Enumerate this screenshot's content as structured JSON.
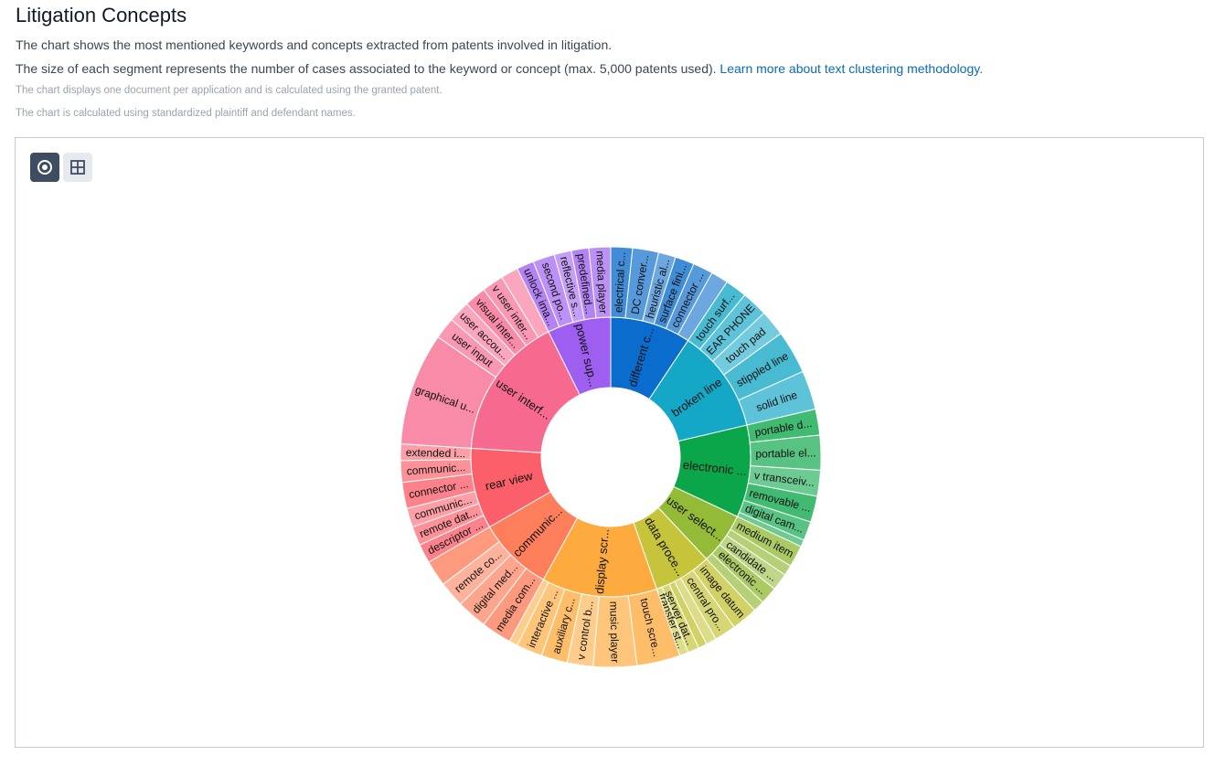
{
  "page": {
    "title": "Litigation Concepts",
    "description_1": "The chart shows the most mentioned keywords and concepts extracted from patents involved in litigation.",
    "description_2": "The size of each segment represents the number of cases associated to the keyword or concept (max. 5,000 patents used).",
    "methodology_link": "Learn more about text clustering methodology.",
    "note_1": "The chart displays one document per application and is calculated using the granted patent.",
    "note_2": "The chart is calculated using standardized plaintiff and defendant names."
  },
  "toolbar": {
    "sunburst_icon": "sunburst-icon",
    "treemap_icon": "treemap-icon"
  },
  "chart_data": {
    "type": "sunburst",
    "title": "",
    "clusters": [
      {
        "label": "different c...",
        "color": "#0a6ccc",
        "value": 14,
        "children": [
          {
            "label": "electrical c...",
            "value": 2.5
          },
          {
            "label": "DC conver...",
            "value": 3.0
          },
          {
            "label": "heuristic al...",
            "value": 2.0
          },
          {
            "label": "surface fini...",
            "value": 2.2
          },
          {
            "label": "connector ...",
            "value": 2.3
          },
          {
            "label": "",
            "value": 2.0
          }
        ]
      },
      {
        "label": "broken line",
        "color": "#15a8c6",
        "value": 18,
        "children": [
          {
            "label": "touch surf...",
            "value": 2.5
          },
          {
            "label": "EAR PHONE",
            "value": 3.0
          },
          {
            "label": "touch pad",
            "value": 3.0
          },
          {
            "label": "stippled line",
            "value": 5.0
          },
          {
            "label": "solid line",
            "value": 4.5
          }
        ]
      },
      {
        "label": "electronic ...",
        "color": "#0ba64a",
        "value": 16,
        "children": [
          {
            "label": "portable d...",
            "value": 3.0
          },
          {
            "label": "portable el...",
            "value": 4.0
          },
          {
            "label": "v transceiv...",
            "value": 3.0
          },
          {
            "label": "removable ...",
            "value": 3.0
          },
          {
            "label": "digital cam...",
            "value": 2.2
          },
          {
            "label": "",
            "value": 0.8
          }
        ]
      },
      {
        "label": "user select...",
        "color": "#94bb38",
        "value": 9,
        "children": [
          {
            "label": "medium item",
            "value": 2.5
          },
          {
            "label": "",
            "value": 1.2
          },
          {
            "label": "candidate ...",
            "value": 2.0
          },
          {
            "label": "electronic ...",
            "value": 2.0
          },
          {
            "label": "",
            "value": 1.3
          }
        ]
      },
      {
        "label": "data proce...",
        "color": "#c5c43a",
        "value": 10,
        "children": [
          {
            "label": "image datum",
            "value": 3.0
          },
          {
            "label": "central pro...",
            "value": 2.5
          },
          {
            "label": "",
            "value": 1.2
          },
          {
            "label": "",
            "value": 1.0
          },
          {
            "label": "server dat...",
            "value": 1.3
          },
          {
            "label": "transfer st...",
            "value": 1.0
          }
        ]
      },
      {
        "label": "display scr...",
        "color": "#fdab3f",
        "value": 20,
        "children": [
          {
            "label": "touch scre...",
            "value": 5.0
          },
          {
            "label": "music player",
            "value": 5.0
          },
          {
            "label": "v control b...",
            "value": 3.0
          },
          {
            "label": "auxiliary c...",
            "value": 3.0
          },
          {
            "label": "interactive ...",
            "value": 3.0
          },
          {
            "label": "",
            "value": 1.0
          }
        ]
      },
      {
        "label": "communic...",
        "color": "#fc7e5a",
        "value": 13,
        "children": [
          {
            "label": "media com...",
            "value": 3.5
          },
          {
            "label": "digital med...",
            "value": 3.5
          },
          {
            "label": "remote co...",
            "value": 3.0
          },
          {
            "label": "",
            "value": 3.0
          }
        ]
      },
      {
        "label": "rear view",
        "color": "#fa5f6a",
        "value": 14,
        "children": [
          {
            "label": "descriptor ...",
            "value": 2.2
          },
          {
            "label": "remote dat...",
            "value": 2.2
          },
          {
            "label": "communic...",
            "value": 2.2
          },
          {
            "label": "connector ...",
            "value": 3.0
          },
          {
            "label": "communic...",
            "value": 2.5
          },
          {
            "label": "extended i...",
            "value": 1.9
          }
        ]
      },
      {
        "label": "user interf...",
        "color": "#f66a8f",
        "value": 25,
        "children": [
          {
            "label": "graphical u...",
            "value": 13.0
          },
          {
            "label": "user input",
            "value": 2.5
          },
          {
            "label": "user accou...",
            "value": 2.5
          },
          {
            "label": "visual inter...",
            "value": 2.5
          },
          {
            "label": "v user inter...",
            "value": 2.5
          },
          {
            "label": "",
            "value": 2.0
          }
        ]
      },
      {
        "label": "power sup...",
        "color": "#9e5ff0",
        "value": 11,
        "children": [
          {
            "label": "unlock ima...",
            "value": 2.0
          },
          {
            "label": "second po...",
            "value": 2.5
          },
          {
            "label": "reflective s...",
            "value": 2.0
          },
          {
            "label": "predefined...",
            "value": 2.0
          },
          {
            "label": "media player",
            "value": 2.5
          }
        ]
      }
    ]
  }
}
